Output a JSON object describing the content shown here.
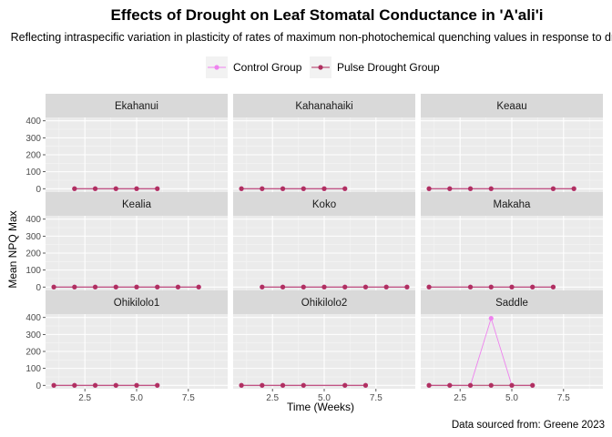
{
  "colors": {
    "control": "#ee82ee",
    "drought": "#b03060",
    "panel_bg": "#ebebeb",
    "strip_bg": "#d9d9d9",
    "grid_major": "#ffffff",
    "grid_minor": "#f5f5f5"
  },
  "chart_data": {
    "type": "line",
    "title": "Effects of Drought on Leaf Stomatal Conductance in 'A'ali'i",
    "subtitle": "Reflecting intraspecific variation in plasticity of rates of maximum non-photochemical quenching values in response to drought",
    "xlabel": "Time (Weeks)",
    "ylabel": "Mean NPQ Max",
    "caption": "Data sourced from: Greene 2023",
    "xlim": [
      0.6,
      9.4
    ],
    "ylim": [
      -20,
      420
    ],
    "x_ticks": [
      2.5,
      5.0,
      7.5
    ],
    "x_tick_labels": [
      "2.5",
      "5.0",
      "7.5"
    ],
    "y_ticks": [
      0,
      100,
      200,
      300,
      400
    ],
    "y_tick_labels": [
      "0",
      "100",
      "200",
      "300",
      "400"
    ],
    "legend": {
      "position": "top",
      "entries": [
        {
          "key": "control",
          "label": "Control Group"
        },
        {
          "key": "drought",
          "label": "Pulse Drought Group"
        }
      ]
    },
    "panels": [
      {
        "name": "Ekahanui",
        "series": [
          {
            "key": "control",
            "x": [
              2,
              3,
              4,
              5,
              6
            ],
            "y": [
              0,
              0,
              0,
              0,
              0
            ]
          },
          {
            "key": "drought",
            "x": [
              2,
              3,
              4,
              5,
              6
            ],
            "y": [
              0,
              0,
              0,
              0,
              0
            ]
          }
        ]
      },
      {
        "name": "Kahanahaiki",
        "series": [
          {
            "key": "control",
            "x": [
              1,
              2,
              3,
              4,
              5,
              6
            ],
            "y": [
              0,
              0,
              0,
              0,
              0,
              0
            ]
          },
          {
            "key": "drought",
            "x": [
              1,
              2,
              3,
              4,
              5,
              6
            ],
            "y": [
              0,
              0,
              0,
              0,
              0,
              0
            ]
          }
        ]
      },
      {
        "name": "Keaau",
        "series": [
          {
            "key": "control",
            "x": [
              1,
              2,
              3,
              4,
              7,
              8
            ],
            "y": [
              0,
              0,
              0,
              0,
              0,
              0
            ]
          },
          {
            "key": "drought",
            "x": [
              1,
              2,
              3,
              4,
              7,
              8
            ],
            "y": [
              0,
              0,
              0,
              0,
              0,
              0
            ]
          }
        ]
      },
      {
        "name": "Kealia",
        "series": [
          {
            "key": "control",
            "x": [
              1,
              2,
              3,
              4,
              5,
              6,
              7,
              8
            ],
            "y": [
              0,
              0,
              0,
              0,
              0,
              0,
              0,
              0
            ]
          },
          {
            "key": "drought",
            "x": [
              1,
              2,
              3,
              4,
              5,
              6,
              7,
              8
            ],
            "y": [
              0,
              0,
              0,
              0,
              0,
              0,
              0,
              0
            ]
          }
        ]
      },
      {
        "name": "Koko",
        "series": [
          {
            "key": "control",
            "x": [
              2,
              3,
              4,
              5,
              6,
              7,
              8,
              9
            ],
            "y": [
              0,
              0,
              0,
              0,
              0,
              0,
              0,
              0
            ]
          },
          {
            "key": "drought",
            "x": [
              2,
              3,
              4,
              5,
              6,
              7,
              8,
              9
            ],
            "y": [
              0,
              0,
              0,
              0,
              0,
              0,
              0,
              0
            ]
          }
        ]
      },
      {
        "name": "Makaha",
        "series": [
          {
            "key": "control",
            "x": [
              1,
              3,
              4,
              5,
              6,
              7
            ],
            "y": [
              0,
              0,
              0,
              0,
              0,
              0
            ]
          },
          {
            "key": "drought",
            "x": [
              1,
              3,
              4,
              5,
              6,
              7
            ],
            "y": [
              0,
              0,
              0,
              0,
              0,
              0
            ]
          }
        ]
      },
      {
        "name": "Ohikilolo1",
        "series": [
          {
            "key": "control",
            "x": [
              1,
              2,
              3,
              4,
              5,
              6
            ],
            "y": [
              0,
              0,
              0,
              0,
              0,
              0
            ]
          },
          {
            "key": "drought",
            "x": [
              1,
              2,
              3,
              4,
              5,
              6
            ],
            "y": [
              0,
              0,
              0,
              0,
              0,
              0
            ]
          }
        ]
      },
      {
        "name": "Ohikilolo2",
        "series": [
          {
            "key": "control",
            "x": [
              1,
              2,
              3,
              4,
              6,
              7
            ],
            "y": [
              0,
              0,
              0,
              0,
              0,
              0
            ]
          },
          {
            "key": "drought",
            "x": [
              1,
              2,
              3,
              4,
              6,
              7
            ],
            "y": [
              0,
              0,
              0,
              0,
              0,
              0
            ]
          }
        ]
      },
      {
        "name": "Saddle",
        "series": [
          {
            "key": "control",
            "x": [
              1,
              2,
              3,
              4,
              5,
              6
            ],
            "y": [
              0,
              0,
              0,
              395,
              0,
              0
            ]
          },
          {
            "key": "drought",
            "x": [
              1,
              2,
              3,
              4,
              5,
              6
            ],
            "y": [
              0,
              0,
              0,
              0,
              0,
              0
            ]
          }
        ]
      }
    ]
  }
}
